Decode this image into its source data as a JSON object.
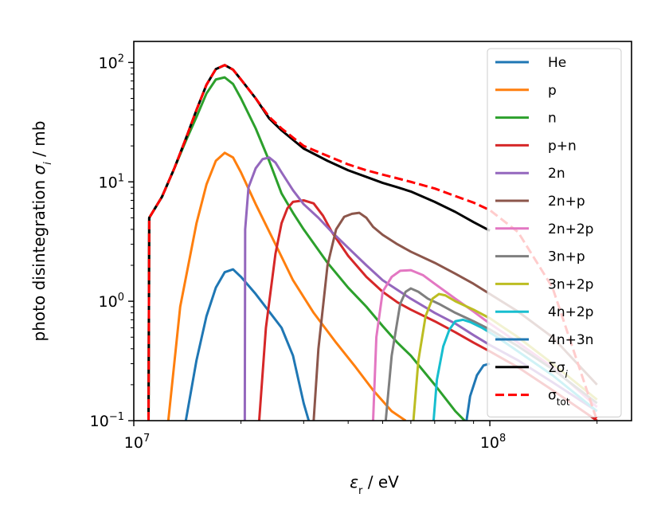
{
  "chart_data": {
    "type": "line",
    "title": "",
    "xlabel": "ε_r / eV",
    "ylabel": "photo disintegration σ_i / mb",
    "xscale": "log",
    "yscale": "log",
    "xlim": [
      10000000,
      250000000
    ],
    "ylim": [
      0.1,
      150
    ],
    "x_ticks": [
      {
        "value": 10000000,
        "base": "10",
        "exp": "7"
      },
      {
        "value": 100000000,
        "base": "10",
        "exp": "8"
      }
    ],
    "y_ticks": [
      {
        "value": 0.1,
        "base": "10",
        "exp": "−1"
      },
      {
        "value": 1,
        "base": "10",
        "exp": "0"
      },
      {
        "value": 10,
        "base": "10",
        "exp": "1"
      },
      {
        "value": 100,
        "base": "10",
        "exp": "2"
      }
    ],
    "legend_position": "top-right",
    "series": [
      {
        "name": "He",
        "label_html": "He",
        "color": "#1f77b4",
        "dash": "solid",
        "x": [
          14000000,
          15000000,
          16000000,
          17000000,
          18000000,
          19000000,
          20000000,
          22000000,
          24000000,
          26000000,
          28000000,
          30000000,
          31000000
        ],
        "y": [
          0.1,
          0.32,
          0.75,
          1.3,
          1.75,
          1.85,
          1.6,
          1.15,
          0.82,
          0.6,
          0.35,
          0.14,
          0.1
        ]
      },
      {
        "name": "p",
        "label_html": "p",
        "color": "#ff7f0e",
        "dash": "solid",
        "x": [
          12500000,
          13500000,
          15000000,
          16000000,
          17000000,
          18000000,
          19000000,
          20000000,
          22000000,
          25000000,
          28000000,
          32000000,
          37000000,
          42000000,
          47000000,
          53000000,
          58000000
        ],
        "y": [
          0.1,
          0.9,
          4.5,
          9.5,
          15,
          17.5,
          16,
          12,
          6.5,
          3,
          1.5,
          0.8,
          0.45,
          0.28,
          0.18,
          0.12,
          0.1
        ]
      },
      {
        "name": "n",
        "label_html": "n",
        "color": "#2ca02c",
        "dash": "solid",
        "x": [
          11000000,
          11050000,
          12000000,
          13000000,
          14000000,
          15000000,
          16000000,
          17000000,
          18000000,
          19000000,
          20000000,
          22000000,
          24000000,
          26000000,
          28000000,
          30000000,
          35000000,
          40000000,
          45000000,
          50000000,
          55000000,
          60000000,
          70000000,
          80000000,
          85000000
        ],
        "y": [
          0.1,
          5,
          7.5,
          13,
          22,
          35,
          55,
          72,
          75,
          66,
          50,
          28,
          15,
          8,
          5.5,
          4,
          2.1,
          1.3,
          0.9,
          0.62,
          0.45,
          0.35,
          0.2,
          0.12,
          0.1
        ]
      },
      {
        "name": "p+n",
        "label_html": "p+n",
        "color": "#d62728",
        "dash": "solid",
        "x": [
          22500000,
          23500000,
          25000000,
          26000000,
          27000000,
          28000000,
          30000000,
          32000000,
          34000000,
          36000000,
          40000000,
          45000000,
          50000000,
          55000000,
          60000000,
          70000000,
          80000000,
          90000000,
          100000000,
          120000000,
          150000000,
          200000000
        ],
        "y": [
          0.1,
          0.6,
          2.5,
          4.5,
          6,
          6.8,
          7,
          6.6,
          5.2,
          3.8,
          2.4,
          1.6,
          1.2,
          0.98,
          0.85,
          0.68,
          0.55,
          0.45,
          0.38,
          0.28,
          0.18,
          0.1
        ]
      },
      {
        "name": "2n",
        "label_html": "2n",
        "color": "#9467bd",
        "dash": "solid",
        "x": [
          20500000,
          20550000,
          21000000,
          22000000,
          23000000,
          24000000,
          25000000,
          26000000,
          28000000,
          30000000,
          33000000,
          36000000,
          40000000,
          45000000,
          50000000,
          60000000,
          70000000,
          80000000,
          90000000,
          100000000,
          120000000,
          150000000,
          200000000
        ],
        "y": [
          0.1,
          4,
          9,
          13,
          15.5,
          16,
          14.5,
          12,
          8.5,
          6.5,
          5,
          3.8,
          2.8,
          2,
          1.5,
          1.05,
          0.8,
          0.65,
          0.52,
          0.43,
          0.32,
          0.21,
          0.12
        ]
      },
      {
        "name": "2n+p",
        "label_html": "2n+p",
        "color": "#8c564b",
        "dash": "solid",
        "x": [
          32000000,
          33000000,
          35000000,
          37000000,
          39000000,
          41000000,
          43000000,
          45000000,
          47000000,
          50000000,
          55000000,
          60000000,
          70000000,
          80000000,
          90000000,
          100000000,
          120000000,
          150000000,
          200000000
        ],
        "y": [
          0.1,
          0.4,
          2,
          4,
          5.1,
          5.4,
          5.5,
          5,
          4.2,
          3.6,
          3,
          2.6,
          2.1,
          1.7,
          1.4,
          1.15,
          0.82,
          0.5,
          0.2
        ]
      },
      {
        "name": "2n+2p",
        "label_html": "2n+2p",
        "color": "#e377c2",
        "dash": "solid",
        "x": [
          47000000,
          48000000,
          50000000,
          53000000,
          56000000,
          60000000,
          65000000,
          70000000,
          80000000,
          90000000,
          100000000,
          120000000,
          150000000,
          200000000
        ],
        "y": [
          0.1,
          0.5,
          1.2,
          1.6,
          1.8,
          1.82,
          1.65,
          1.4,
          1.05,
          0.82,
          0.65,
          0.45,
          0.28,
          0.13
        ]
      },
      {
        "name": "3n+p",
        "label_html": "3n+p",
        "color": "#7f7f7f",
        "dash": "solid",
        "x": [
          51000000,
          53000000,
          56000000,
          58000000,
          60000000,
          63000000,
          67000000,
          72000000,
          80000000,
          90000000,
          100000000,
          120000000,
          150000000,
          200000000
        ],
        "y": [
          0.1,
          0.35,
          0.95,
          1.2,
          1.28,
          1.2,
          1.05,
          0.95,
          0.8,
          0.68,
          0.58,
          0.42,
          0.27,
          0.14
        ]
      },
      {
        "name": "3n+2p",
        "label_html": "3n+2p",
        "color": "#bcbd22",
        "dash": "solid",
        "x": [
          61000000,
          63000000,
          66000000,
          69000000,
          72000000,
          75000000,
          80000000,
          90000000,
          100000000,
          120000000,
          150000000,
          200000000
        ],
        "y": [
          0.1,
          0.32,
          0.75,
          1.05,
          1.15,
          1.12,
          1.0,
          0.85,
          0.72,
          0.5,
          0.3,
          0.15
        ]
      },
      {
        "name": "4n+2p",
        "label_html": "4n+2p",
        "color": "#17becf",
        "dash": "solid",
        "x": [
          69500000,
          71000000,
          74000000,
          77000000,
          80000000,
          84000000,
          88000000,
          95000000,
          105000000,
          120000000,
          150000000,
          200000000
        ],
        "y": [
          0.1,
          0.22,
          0.42,
          0.58,
          0.68,
          0.7,
          0.67,
          0.6,
          0.5,
          0.38,
          0.24,
          0.12
        ]
      },
      {
        "name": "4n+3n",
        "label_html": "4n+3n",
        "color": "#1f77b4",
        "dash": "solid",
        "x": [
          86000000,
          88000000,
          92000000,
          96000000,
          100000000
        ],
        "y": [
          0.1,
          0.16,
          0.24,
          0.29,
          0.3
        ]
      },
      {
        "name": "Σσi",
        "label_html": "Σσ<tspan font-style='italic' baseline-shift='sub' font-size='12'>i</tspan>",
        "color": "#000000",
        "dash": "solid",
        "x": [
          11000000,
          11050000,
          12000000,
          13000000,
          14000000,
          15000000,
          16000000,
          17000000,
          18000000,
          19000000,
          20000000,
          22000000,
          24000000,
          26000000,
          28000000,
          30000000,
          35000000,
          40000000,
          45000000,
          50000000,
          55000000,
          60000000,
          70000000,
          80000000,
          90000000,
          100000000
        ],
        "y": [
          0.1,
          5,
          7.5,
          13,
          23,
          40,
          65,
          88,
          95,
          87,
          72,
          50,
          34,
          27,
          22.5,
          19,
          15,
          12.5,
          11,
          9.8,
          9,
          8.3,
          6.8,
          5.6,
          4.6,
          3.9
        ]
      },
      {
        "name": "σtot",
        "label_html": "σ<tspan baseline-shift='sub' font-size='12'>tot</tspan>",
        "color": "#ff0000",
        "dash": "dashed",
        "x": [
          11000000,
          11050000,
          12000000,
          13000000,
          14000000,
          15000000,
          16000000,
          17000000,
          18000000,
          19000000,
          20000000,
          22000000,
          24000000,
          26000000,
          28000000,
          30000000,
          35000000,
          40000000,
          45000000,
          50000000,
          55000000,
          60000000,
          70000000,
          80000000,
          90000000,
          100000000,
          120000000,
          150000000,
          200000000
        ],
        "y": [
          0.1,
          5,
          7.5,
          13,
          23,
          40,
          65,
          88,
          95,
          87,
          72,
          50,
          35,
          28,
          23.5,
          20,
          16.5,
          14,
          12.5,
          11.5,
          10.7,
          10,
          8.8,
          7.6,
          6.7,
          5.8,
          3.8,
          1.3,
          0.1
        ]
      }
    ]
  }
}
